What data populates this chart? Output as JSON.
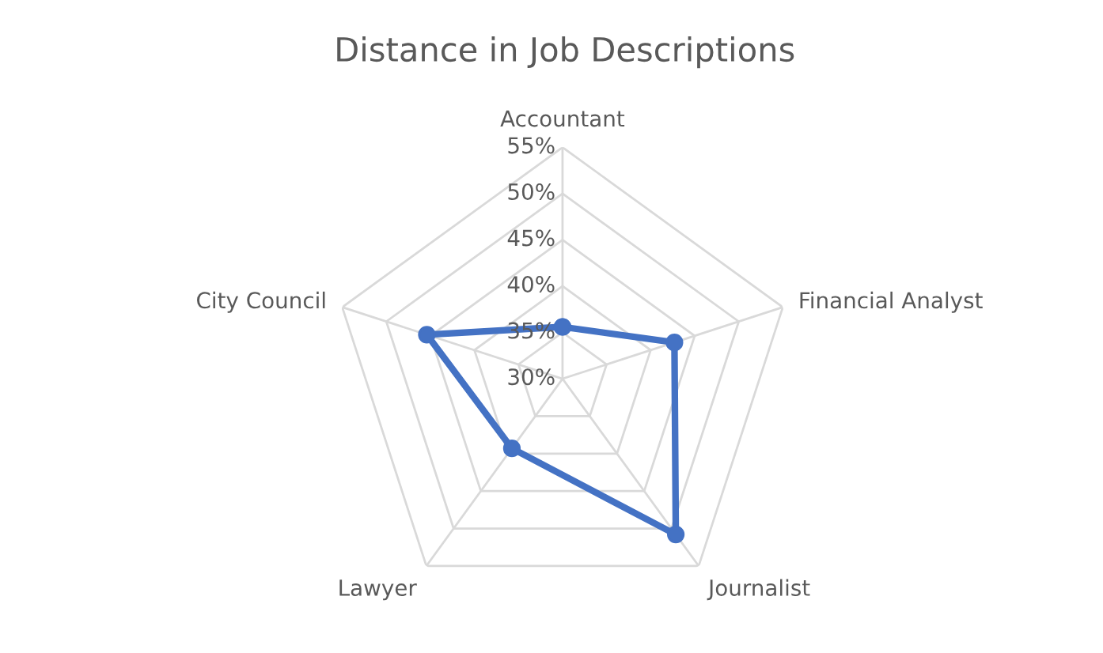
{
  "chart_data": {
    "type": "radar",
    "title": "Distance in Job Descriptions",
    "categories": [
      "Accountant",
      "Financial Analyst",
      "Journalist",
      "Lawyer",
      "City Council"
    ],
    "series": [
      {
        "color": "#4472c4",
        "values": [
          35.6,
          42.7,
          50.8,
          39.3,
          45.4
        ]
      }
    ],
    "ylim": [
      30,
      55
    ],
    "yticks": [
      {
        "value": 30,
        "label": "30%"
      },
      {
        "value": 35,
        "label": "35%"
      },
      {
        "value": 40,
        "label": "40%"
      },
      {
        "value": 45,
        "label": "45%"
      },
      {
        "value": 50,
        "label": "50%"
      },
      {
        "value": 55,
        "label": "55%"
      }
    ],
    "grid": true,
    "marker": "circle",
    "line_style": "solid",
    "legend": false
  }
}
